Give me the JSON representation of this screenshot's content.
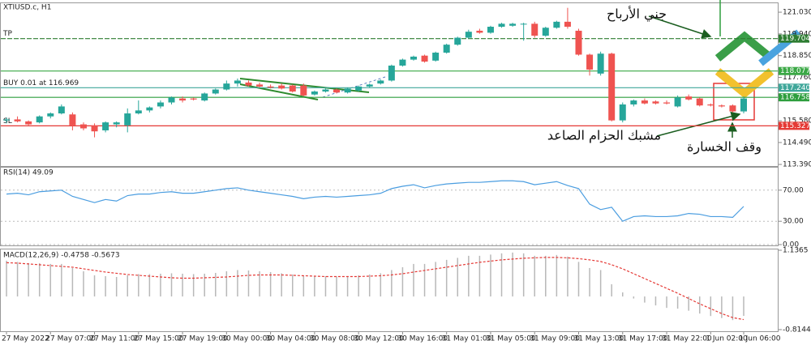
{
  "chart_data": [
    {
      "type": "candlestick",
      "title": "XTIUSD.c, H1",
      "categories": [
        "27 May 2022",
        null,
        null,
        null,
        "27 May 07:00",
        null,
        null,
        null,
        "27 May 11:00",
        null,
        null,
        null,
        "27 May 15:00",
        null,
        null,
        null,
        "27 May 19:00",
        null,
        null,
        null,
        "30 May 00:00",
        null,
        null,
        null,
        "30 May 04:00",
        null,
        null,
        null,
        "30 May 08:00",
        null,
        null,
        null,
        "30 May 12:00",
        null,
        null,
        null,
        "30 May 16:00",
        null,
        null,
        null,
        "31 May 01:00",
        null,
        null,
        null,
        "31 May 05:00",
        null,
        null,
        null,
        "31 May 09:00",
        null,
        null,
        null,
        "31 May 13:00",
        null,
        null,
        null,
        "31 May 17:00",
        null,
        null,
        null,
        "31 May 22:00",
        null,
        null,
        null,
        "1 Jun 02:00",
        null,
        null,
        "1 Jun 06:00"
      ],
      "candles": [
        [
          115.6,
          115.75,
          115.45,
          115.65
        ],
        [
          115.65,
          115.8,
          115.5,
          115.55
        ],
        [
          115.55,
          115.6,
          115.35,
          115.4
        ],
        [
          115.5,
          115.85,
          115.45,
          115.8
        ],
        [
          115.8,
          116.0,
          115.7,
          115.95
        ],
        [
          115.95,
          116.4,
          115.9,
          116.3
        ],
        [
          115.9,
          116.0,
          115.1,
          115.35
        ],
        [
          115.4,
          115.5,
          115.1,
          115.2
        ],
        [
          115.35,
          115.45,
          114.75,
          115.05
        ],
        [
          115.1,
          115.55,
          115.0,
          115.5
        ],
        [
          115.4,
          115.55,
          115.25,
          115.5
        ],
        [
          115.35,
          116.2,
          115.0,
          115.95
        ],
        [
          115.95,
          116.6,
          115.9,
          116.1
        ],
        [
          116.1,
          116.3,
          116.0,
          116.25
        ],
        [
          116.3,
          116.6,
          116.2,
          116.5
        ],
        [
          116.5,
          116.8,
          116.4,
          116.75
        ],
        [
          116.7,
          116.8,
          116.5,
          116.6
        ],
        [
          116.7,
          116.75,
          116.6,
          116.65
        ],
        [
          116.6,
          117.0,
          116.55,
          116.95
        ],
        [
          116.95,
          117.2,
          116.9,
          117.15
        ],
        [
          117.15,
          117.6,
          117.1,
          117.45
        ],
        [
          117.45,
          117.7,
          117.3,
          117.6
        ],
        [
          117.5,
          117.6,
          117.3,
          117.35
        ],
        [
          117.4,
          117.5,
          117.25,
          117.3
        ],
        [
          117.3,
          117.4,
          117.2,
          117.25
        ],
        [
          117.35,
          117.45,
          117.15,
          117.2
        ],
        [
          117.35,
          117.4,
          117.0,
          117.05
        ],
        [
          117.35,
          117.45,
          116.8,
          116.85
        ],
        [
          116.9,
          117.1,
          116.85,
          117.05
        ],
        [
          117.05,
          117.2,
          117.0,
          117.15
        ],
        [
          117.15,
          117.2,
          116.95,
          117.0
        ],
        [
          117.0,
          117.25,
          116.95,
          117.2
        ],
        [
          117.1,
          117.35,
          117.05,
          117.3
        ],
        [
          117.3,
          117.45,
          117.25,
          117.4
        ],
        [
          117.45,
          117.65,
          117.4,
          117.6
        ],
        [
          117.6,
          118.4,
          117.55,
          118.35
        ],
        [
          118.35,
          118.7,
          118.3,
          118.65
        ],
        [
          118.65,
          118.85,
          118.6,
          118.8
        ],
        [
          118.85,
          118.9,
          118.5,
          118.55
        ],
        [
          118.6,
          119.05,
          118.55,
          119.0
        ],
        [
          119.0,
          119.45,
          118.95,
          119.4
        ],
        [
          119.4,
          119.8,
          119.35,
          119.75
        ],
        [
          119.75,
          120.15,
          119.7,
          120.05
        ],
        [
          120.1,
          120.2,
          119.95,
          120.0
        ],
        [
          120.0,
          120.35,
          119.95,
          120.3
        ],
        [
          120.3,
          120.5,
          120.25,
          120.45
        ],
        [
          120.35,
          120.5,
          120.3,
          120.45
        ],
        [
          120.45,
          120.5,
          119.6,
          120.45
        ],
        [
          120.45,
          120.55,
          119.75,
          119.85
        ],
        [
          119.85,
          120.3,
          119.8,
          120.25
        ],
        [
          120.25,
          120.6,
          120.2,
          120.55
        ],
        [
          120.55,
          121.25,
          120.2,
          120.3
        ],
        [
          120.1,
          120.2,
          118.85,
          118.9
        ],
        [
          118.9,
          118.95,
          117.85,
          118.15
        ],
        [
          117.95,
          119.05,
          117.85,
          118.95
        ],
        [
          118.95,
          119.0,
          115.55,
          115.6
        ],
        [
          115.6,
          116.5,
          115.5,
          116.4
        ],
        [
          116.4,
          116.65,
          116.3,
          116.6
        ],
        [
          116.6,
          116.7,
          116.4,
          116.45
        ],
        [
          116.55,
          116.6,
          116.4,
          116.45
        ],
        [
          116.5,
          116.6,
          116.4,
          116.45
        ],
        [
          116.3,
          116.85,
          116.25,
          116.75
        ],
        [
          116.8,
          116.9,
          116.6,
          116.65
        ],
        [
          116.7,
          116.75,
          116.3,
          116.35
        ],
        [
          116.4,
          116.45,
          116.3,
          116.35
        ],
        [
          116.35,
          116.4,
          116.25,
          116.3
        ],
        [
          116.35,
          116.4,
          116.0,
          116.05
        ],
        [
          116.05,
          116.8,
          115.95,
          116.7
        ]
      ],
      "up_color": "#26a69a",
      "down_color": "#ef5350",
      "ylim": [
        113.31,
        121.52
      ],
      "yticks": [
        {
          "value": 121.03,
          "label": "121.030"
        },
        {
          "value": 119.94,
          "label": "119.940"
        },
        {
          "value": 118.85,
          "label": "118.850"
        },
        {
          "value": 117.76,
          "label": "117.760"
        },
        {
          "value": 115.58,
          "label": "115.580"
        },
        {
          "value": 114.49,
          "label": "114.490"
        },
        {
          "value": 113.39,
          "label": "113.390"
        }
      ],
      "levels": [
        {
          "name": "TP",
          "value": 119.704,
          "label": "119.704",
          "color": "#2e7d32",
          "dashed": true
        },
        {
          "value": 118.077,
          "label": "118.077",
          "color": "#3aa845"
        },
        {
          "name": "BUY 0.01 at 116.969",
          "value": 117.24,
          "label": "117.240",
          "color": "#3fa79a"
        },
        {
          "value": 116.758,
          "label": "116.758",
          "color": "#2e9e3e"
        },
        {
          "name": "SL",
          "value": 115.327,
          "label": "115.327",
          "color": "#e53935"
        }
      ],
      "annotations": [
        "جني الأرباح",
        "مشبك الحزام الصاعد",
        "وقف الخسارة"
      ]
    },
    {
      "type": "line",
      "title": "RSI(14) 49.09",
      "color": "#4a9de0",
      "values": [
        65,
        66,
        64,
        68,
        69,
        70,
        62,
        58,
        54,
        58,
        56,
        63,
        65,
        65,
        67,
        68,
        66,
        66,
        68,
        70,
        72,
        73,
        70,
        68,
        66,
        64,
        62,
        59,
        61,
        62,
        61,
        62,
        63,
        64,
        66,
        72,
        75,
        77,
        73,
        76,
        78,
        79,
        80,
        80,
        81,
        82,
        82,
        81,
        77,
        79,
        81,
        76,
        72,
        52,
        45,
        48,
        30,
        36,
        37,
        36,
        36,
        37,
        40,
        39,
        36,
        36,
        35,
        49.09
      ],
      "ylim": [
        0,
        100
      ],
      "yticks": [
        {
          "value": 70,
          "label": "70.00"
        },
        {
          "value": 30,
          "label": "30.00"
        },
        {
          "value": 0,
          "label": "0.00"
        }
      ],
      "grid": true
    },
    {
      "type": "bar",
      "title": "MACD(12,26,9) -0.4758 -0.5673",
      "series": [
        {
          "type": "bar",
          "color": "#b8b8b8",
          "values": [
            0.88,
            0.85,
            0.82,
            0.82,
            0.8,
            0.8,
            0.7,
            0.62,
            0.52,
            0.5,
            0.48,
            0.52,
            0.55,
            0.55,
            0.56,
            0.57,
            0.56,
            0.55,
            0.56,
            0.58,
            0.62,
            0.65,
            0.64,
            0.62,
            0.6,
            0.57,
            0.54,
            0.5,
            0.5,
            0.5,
            0.49,
            0.5,
            0.52,
            0.54,
            0.57,
            0.65,
            0.72,
            0.8,
            0.8,
            0.85,
            0.9,
            0.95,
            1.0,
            1.0,
            1.03,
            1.06,
            1.08,
            1.06,
            1.0,
            1.0,
            1.02,
            0.98,
            0.85,
            0.7,
            0.65,
            0.3,
            0.1,
            -0.05,
            -0.15,
            -0.22,
            -0.28,
            -0.3,
            -0.35,
            -0.42,
            -0.48,
            -0.53,
            -0.58,
            -0.4758
          ]
        },
        {
          "type": "line",
          "color": "#e53935",
          "values": [
            0.83,
            0.82,
            0.8,
            0.78,
            0.76,
            0.74,
            0.72,
            0.68,
            0.64,
            0.6,
            0.57,
            0.54,
            0.52,
            0.5,
            0.48,
            0.46,
            0.45,
            0.45,
            0.46,
            0.47,
            0.48,
            0.5,
            0.52,
            0.53,
            0.53,
            0.53,
            0.52,
            0.51,
            0.5,
            0.49,
            0.49,
            0.49,
            0.49,
            0.5,
            0.51,
            0.53,
            0.56,
            0.6,
            0.64,
            0.68,
            0.72,
            0.76,
            0.8,
            0.84,
            0.87,
            0.9,
            0.92,
            0.94,
            0.95,
            0.96,
            0.96,
            0.95,
            0.93,
            0.9,
            0.86,
            0.78,
            0.68,
            0.56,
            0.44,
            0.32,
            0.2,
            0.08,
            -0.05,
            -0.18,
            -0.3,
            -0.42,
            -0.52,
            -0.5673
          ]
        }
      ],
      "ylim": [
        -0.8144,
        1.1365
      ],
      "yticks": [
        1.1365,
        -0.8144
      ]
    }
  ]
}
